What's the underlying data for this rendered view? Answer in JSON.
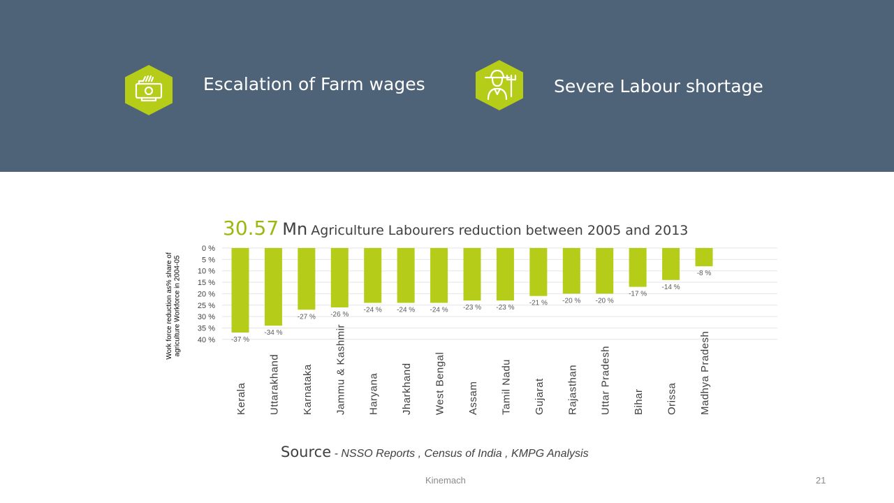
{
  "header": {
    "features": [
      {
        "label": "Escalation of Farm wages",
        "icon": "money-hand-icon"
      },
      {
        "label": "Severe Labour shortage",
        "icon": "farmer-icon"
      }
    ]
  },
  "title": {
    "value": "30.57",
    "unit": "Mn",
    "text": "Agriculture Labourers reduction between 2005 and 2013"
  },
  "colors": {
    "banner": "#4f6378",
    "accent": "#b5cc18",
    "bar": "#b5cc18",
    "text": "#404040"
  },
  "chart_data": {
    "type": "bar",
    "ylabel": "Work force reduction as% share of agriculture Workforce in 2004-05",
    "yticks": [
      "0 %",
      "5 %",
      "10 %",
      "15 %",
      "20 %",
      "25 %",
      "30 %",
      "35 %",
      "40 %"
    ],
    "ylim": [
      0,
      40
    ],
    "y_inverted": true,
    "grid": true,
    "categories": [
      "Kerala",
      "Uttarakhand",
      "Karnataka",
      "Jammu & Kashmir",
      "Haryana",
      "Jharkhand",
      "West Bengal",
      "Assam",
      "Tamil Nadu",
      "Gujarat",
      "Rajasthan",
      "Uttar Pradesh",
      "Bihar",
      "Orissa",
      "Madhya Pradesh"
    ],
    "values": [
      -37,
      -34,
      -27,
      -26,
      -24,
      -24,
      -24,
      -23,
      -23,
      -21,
      -20,
      -20,
      -17,
      -14,
      -8
    ],
    "data_labels": [
      "-37 %",
      "-34 %",
      "-27 %",
      "-26 %",
      "-24 %",
      "-24 %",
      "-24 %",
      "-23 %",
      "-23 %",
      "-21 %",
      "-20 %",
      "-20 %",
      "-17 %",
      "-14 %",
      "-8 %"
    ]
  },
  "source": {
    "label": "Source",
    "text": "- NSSO Reports , Census of India , KMPG Analysis"
  },
  "footer": {
    "company": "Kinemach",
    "page": "21"
  }
}
